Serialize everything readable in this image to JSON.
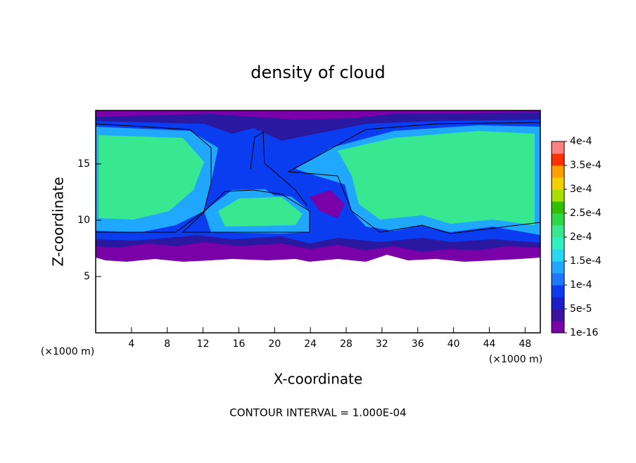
{
  "chart_data": {
    "type": "contour",
    "title": "density of cloud",
    "x_label": "X-coordinate",
    "y_label": "Z-coordinate",
    "x_unit": "(×1000 m)",
    "y_unit": "(×1000 m)",
    "annotation": "CONTOUR INTERVAL = 1.000E-04",
    "xlim": [
      0,
      49.7
    ],
    "ylim": [
      0,
      19.75
    ],
    "xticks": [
      4,
      8,
      12,
      16,
      20,
      24,
      28,
      32,
      36,
      40,
      44,
      48
    ],
    "yticks": [
      5,
      10,
      15
    ],
    "colorbar": {
      "lim": [
        0,
        0.0004
      ],
      "ticks": [
        {
          "value": 1e-16,
          "label": "1e-16"
        },
        {
          "value": 5e-05,
          "label": "5e-5"
        },
        {
          "value": 0.0001,
          "label": "1e-4"
        },
        {
          "value": 0.00015,
          "label": "1.5e-4"
        },
        {
          "value": 0.0002,
          "label": "2e-4"
        },
        {
          "value": 0.00025,
          "label": "2.5e-4"
        },
        {
          "value": 0.0003,
          "label": "3e-4"
        },
        {
          "value": 0.00035,
          "label": "3.5e-4"
        },
        {
          "value": 0.0004,
          "label": "4e-4"
        }
      ],
      "colors": [
        "#7a00a8",
        "#3a14a0",
        "#1a20c8",
        "#0a3cf0",
        "#1e78ff",
        "#20a8ff",
        "#28d8f0",
        "#30f0c0",
        "#38e890",
        "#30d848",
        "#30c000",
        "#a8e000",
        "#f0d000",
        "#ffa000",
        "#ff3000",
        "#ff8080"
      ]
    }
  }
}
